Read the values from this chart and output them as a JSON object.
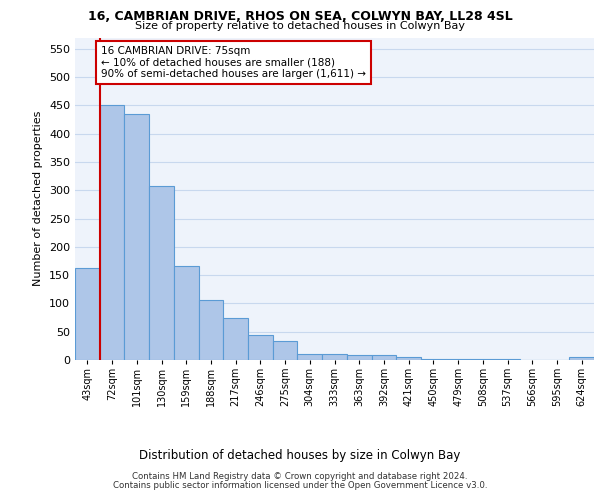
{
  "title1": "16, CAMBRIAN DRIVE, RHOS ON SEA, COLWYN BAY, LL28 4SL",
  "title2": "Size of property relative to detached houses in Colwyn Bay",
  "xlabel": "Distribution of detached houses by size in Colwyn Bay",
  "ylabel": "Number of detached properties",
  "footer1": "Contains HM Land Registry data © Crown copyright and database right 2024.",
  "footer2": "Contains public sector information licensed under the Open Government Licence v3.0.",
  "bar_labels": [
    "43sqm",
    "72sqm",
    "101sqm",
    "130sqm",
    "159sqm",
    "188sqm",
    "217sqm",
    "246sqm",
    "275sqm",
    "304sqm",
    "333sqm",
    "363sqm",
    "392sqm",
    "421sqm",
    "450sqm",
    "479sqm",
    "508sqm",
    "537sqm",
    "566sqm",
    "595sqm",
    "624sqm"
  ],
  "bar_values": [
    163,
    450,
    435,
    307,
    167,
    106,
    74,
    45,
    33,
    11,
    11,
    8,
    8,
    5,
    2,
    2,
    2,
    1,
    0,
    0,
    5
  ],
  "bar_color": "#aec6e8",
  "bar_edgecolor": "#5b9bd5",
  "bg_color": "#eef3fb",
  "grid_color": "#c8d8ee",
  "annotation_line1": "16 CAMBRIAN DRIVE: 75sqm",
  "annotation_line2": "← 10% of detached houses are smaller (188)",
  "annotation_line3": "90% of semi-detached houses are larger (1,611) →",
  "vline_color": "#cc0000",
  "box_edgecolor": "#cc0000",
  "ylim": [
    0,
    570
  ],
  "yticks": [
    0,
    50,
    100,
    150,
    200,
    250,
    300,
    350,
    400,
    450,
    500,
    550
  ]
}
